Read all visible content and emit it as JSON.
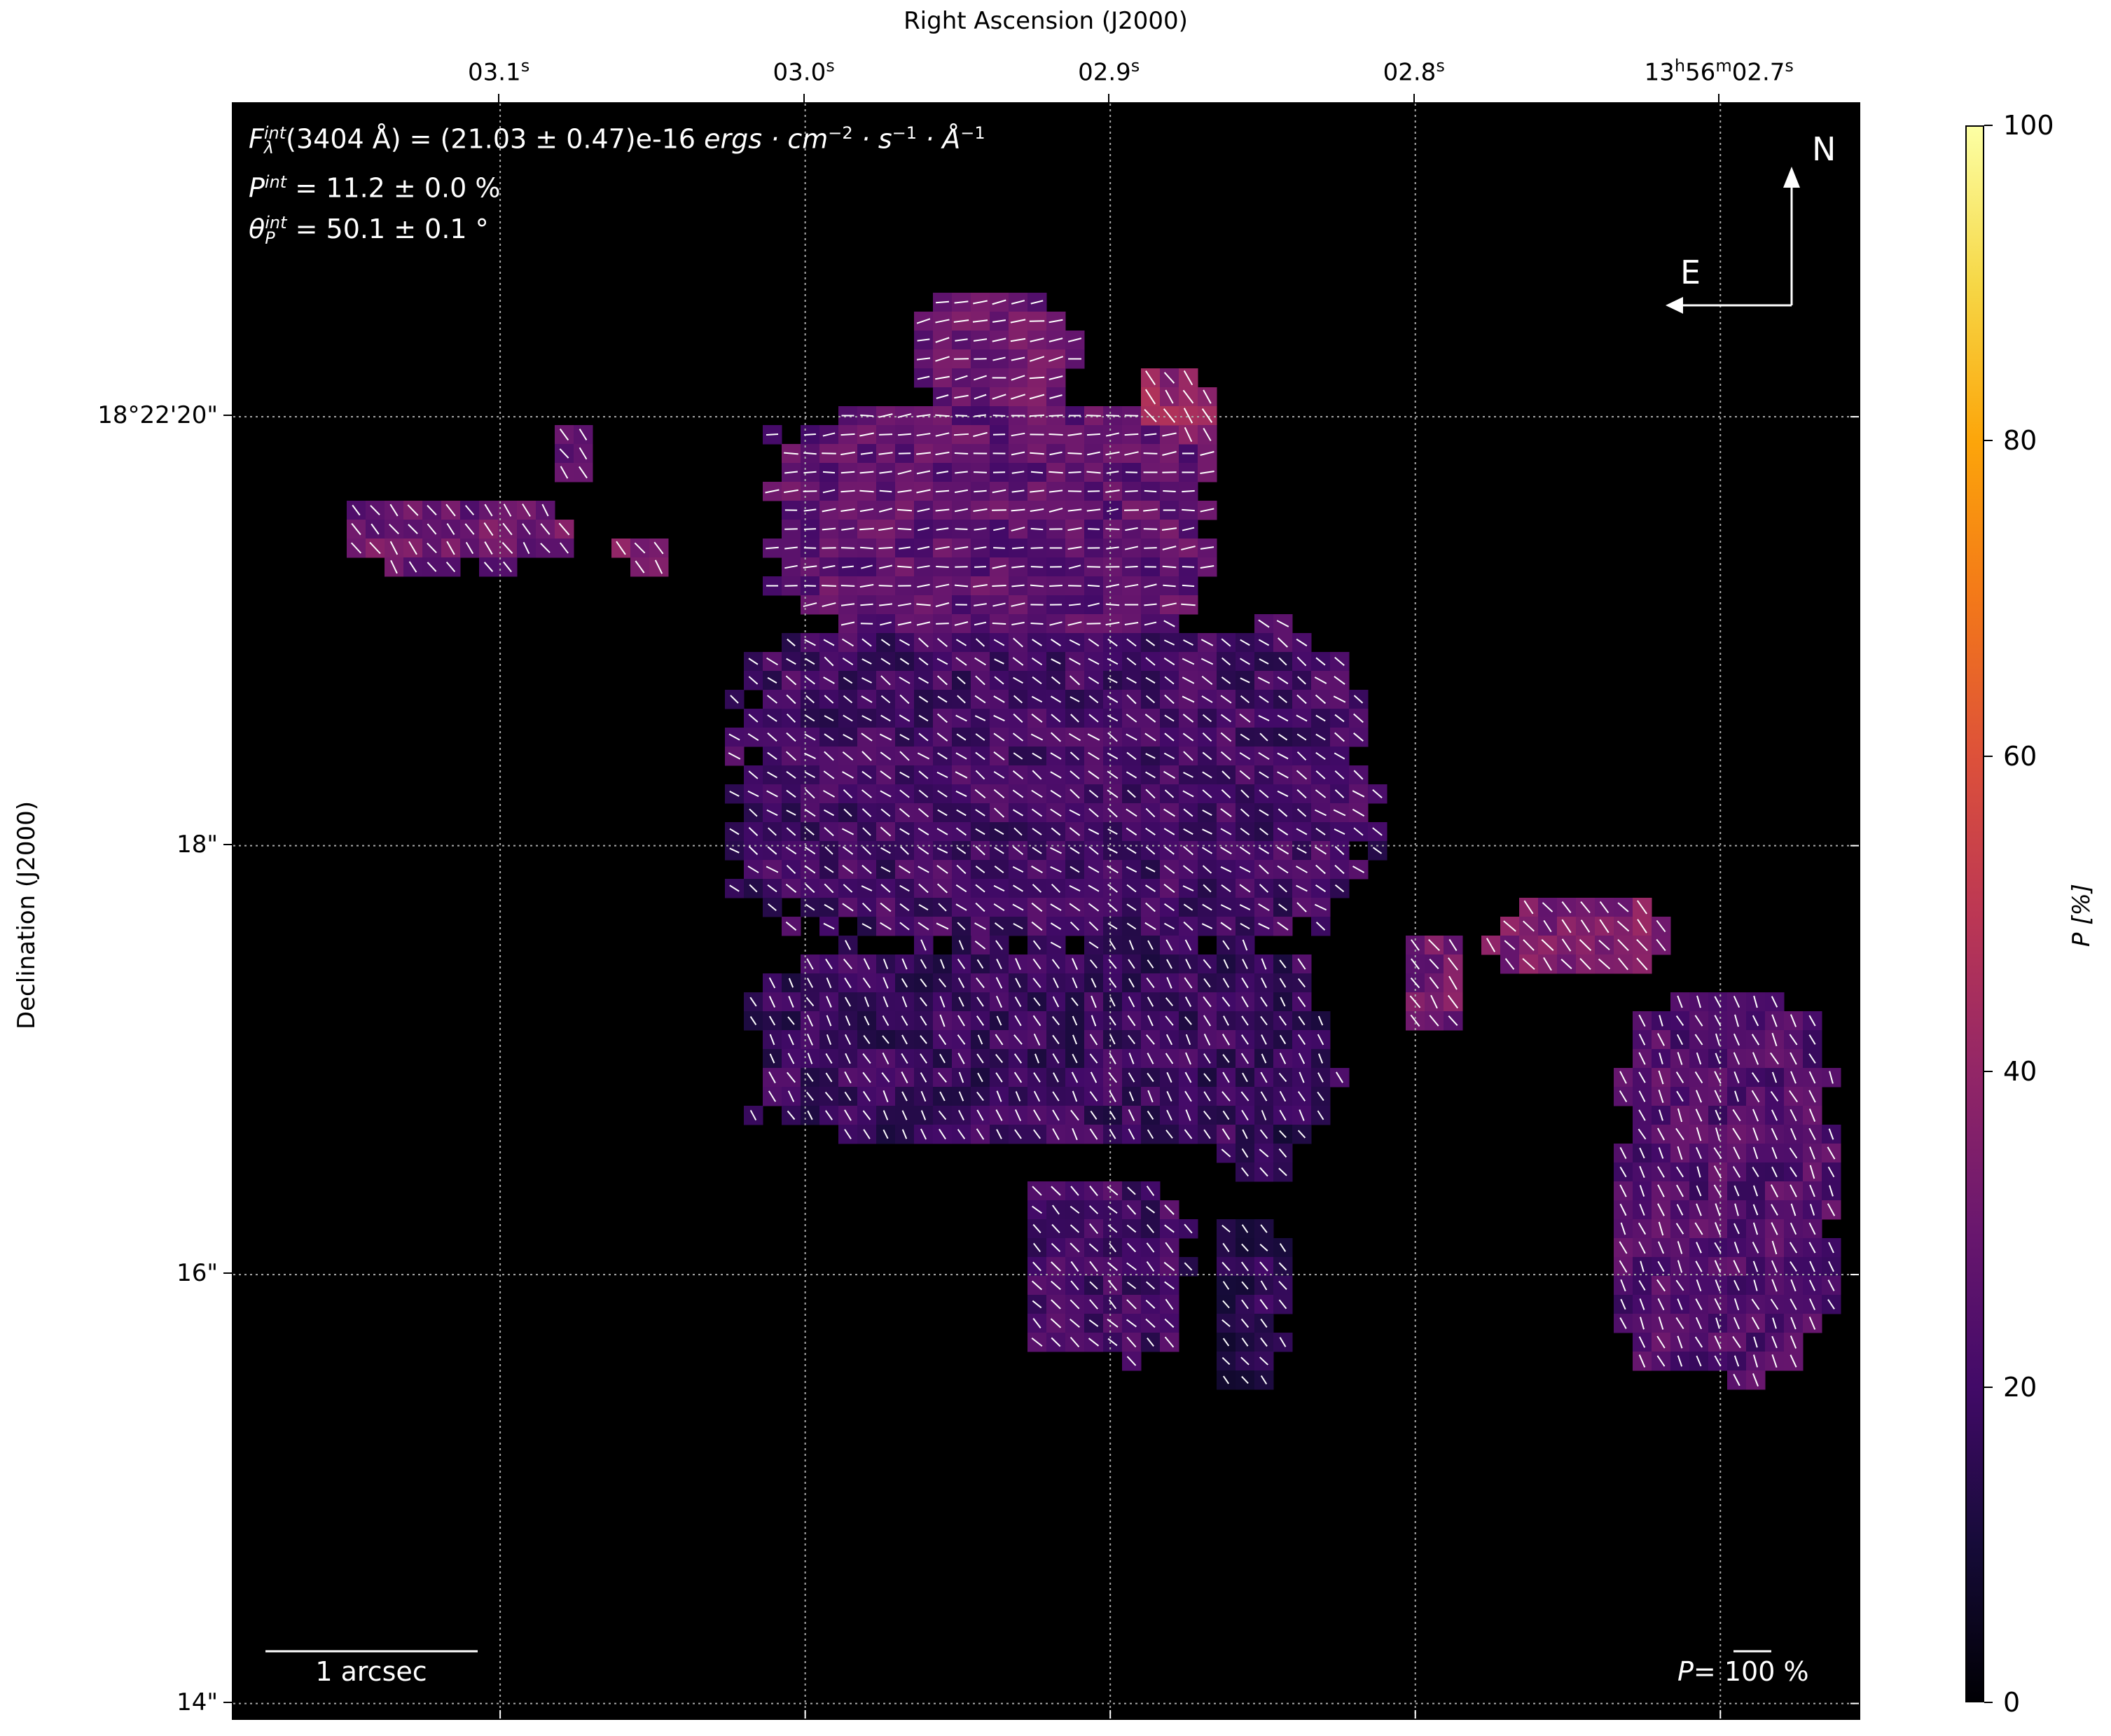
{
  "chart_data": {
    "type": "heatmap",
    "xlabel": "Right Ascension (J2000)",
    "ylabel": "Declination (J2000)",
    "x_ticks": [
      {
        "value": 3.1,
        "label": "03.1",
        "unit": "s"
      },
      {
        "value": 3.0,
        "label": "03.0",
        "unit": "s"
      },
      {
        "value": 2.9,
        "label": "02.9",
        "unit": "s"
      },
      {
        "value": 2.8,
        "label": "02.8",
        "unit": "s"
      },
      {
        "value": 2.7,
        "label_h": "13",
        "label_m": "56",
        "label": "02.7",
        "unit": "s"
      }
    ],
    "y_ticks": [
      {
        "value": 20,
        "label": "18°22'20\""
      },
      {
        "value": 18,
        "label": "18\""
      },
      {
        "value": 16,
        "label": "16\""
      },
      {
        "value": 14,
        "label": "14\""
      }
    ],
    "xlim_ra_seconds": [
      3.1875,
      2.6546
    ],
    "ylim_dec_arcsec": [
      13.93,
      21.46
    ],
    "grid": true,
    "colormap": "inferno",
    "colorbar": {
      "label": "P [%]",
      "range": [
        0,
        100
      ],
      "ticks": [
        "0",
        "20",
        "40",
        "60",
        "80",
        "100"
      ]
    },
    "regions_P_percent": [
      {
        "ra": [
          2.9639,
          2.911
        ],
        "dec": [
          20.557,
          20.056
        ],
        "P": 30,
        "angle_deg": 10
      },
      {
        "ra": [
          3.0123,
          2.867
        ],
        "dec": [
          20.056,
          18.99
        ],
        "P": 27,
        "angle_deg": 5
      },
      {
        "ra": [
          3.0235,
          2.8143
        ],
        "dec": [
          19.055,
          17.554
        ],
        "P": 20,
        "angle_deg": -35
      },
      {
        "ra": [
          3.019,
          2.8253
        ],
        "dec": [
          17.554,
          16.612
        ],
        "P": 18,
        "angle_deg": -60
      },
      {
        "ra": [
          2.89,
          2.867
        ],
        "dec": [
          20.23,
          19.81
        ],
        "P": 40,
        "angle_deg": -55
      },
      {
        "ra": [
          3.151,
          3.079
        ],
        "dec": [
          19.62,
          19.29
        ],
        "P": 30,
        "angle_deg": -55
      },
      {
        "ra": [
          3.061,
          3.043
        ],
        "dec": [
          19.46,
          19.29
        ],
        "P": 38,
        "angle_deg": -55
      },
      {
        "ra": [
          3.085,
          3.067
        ],
        "dec": [
          19.96,
          19.73
        ],
        "P": 30,
        "angle_deg": -55
      },
      {
        "ra": [
          2.775,
          2.716
        ],
        "dec": [
          17.73,
          17.4
        ],
        "P": 35,
        "angle_deg": -50
      },
      {
        "ra": [
          2.805,
          2.783
        ],
        "dec": [
          17.55,
          17.15
        ],
        "P": 32,
        "angle_deg": -55
      },
      {
        "ra": [
          2.734,
          2.662
        ],
        "dec": [
          17.3,
          15.5
        ],
        "P": 24,
        "angle_deg": -65
      },
      {
        "ra": [
          2.927,
          2.874
        ],
        "dec": [
          16.44,
          15.6
        ],
        "P": 20,
        "angle_deg": -45
      },
      {
        "ra": [
          2.862,
          2.837
        ],
        "dec": [
          16.88,
          16.46
        ],
        "P": 14,
        "angle_deg": -50
      },
      {
        "ra": [
          2.867,
          2.843
        ],
        "dec": [
          16.25,
          15.5
        ],
        "P": 15,
        "angle_deg": -50
      }
    ]
  },
  "annotations": {
    "flux_prefix": "F",
    "flux_sup": "int",
    "flux_sub": "λ",
    "flux_wavelength": "(3404 Å) = (21.03 ± 0.47)e-16 ",
    "flux_units": "ergs · cm",
    "flux_exp1": "−2",
    "flux_s": " · s",
    "flux_exp2": "−1",
    "flux_A": " · Å",
    "flux_exp3": "−1",
    "p_prefix": "P",
    "p_sup": "int",
    "p_value": " = 11.2 ± 0.0 %",
    "theta_prefix": "θ",
    "theta_sup": "int",
    "theta_sub": "P",
    "theta_value": " = 50.1 ± 0.1 °",
    "compass_north": "N",
    "compass_east": "E",
    "scalebar_label": "1 arcsec",
    "vector_legend_prefix": "P=",
    "vector_legend_value": "100",
    "vector_legend_unit": " %"
  },
  "colors": {
    "background": "#000000",
    "vectors": "#ffffff",
    "grid": "#aaaaaa"
  }
}
